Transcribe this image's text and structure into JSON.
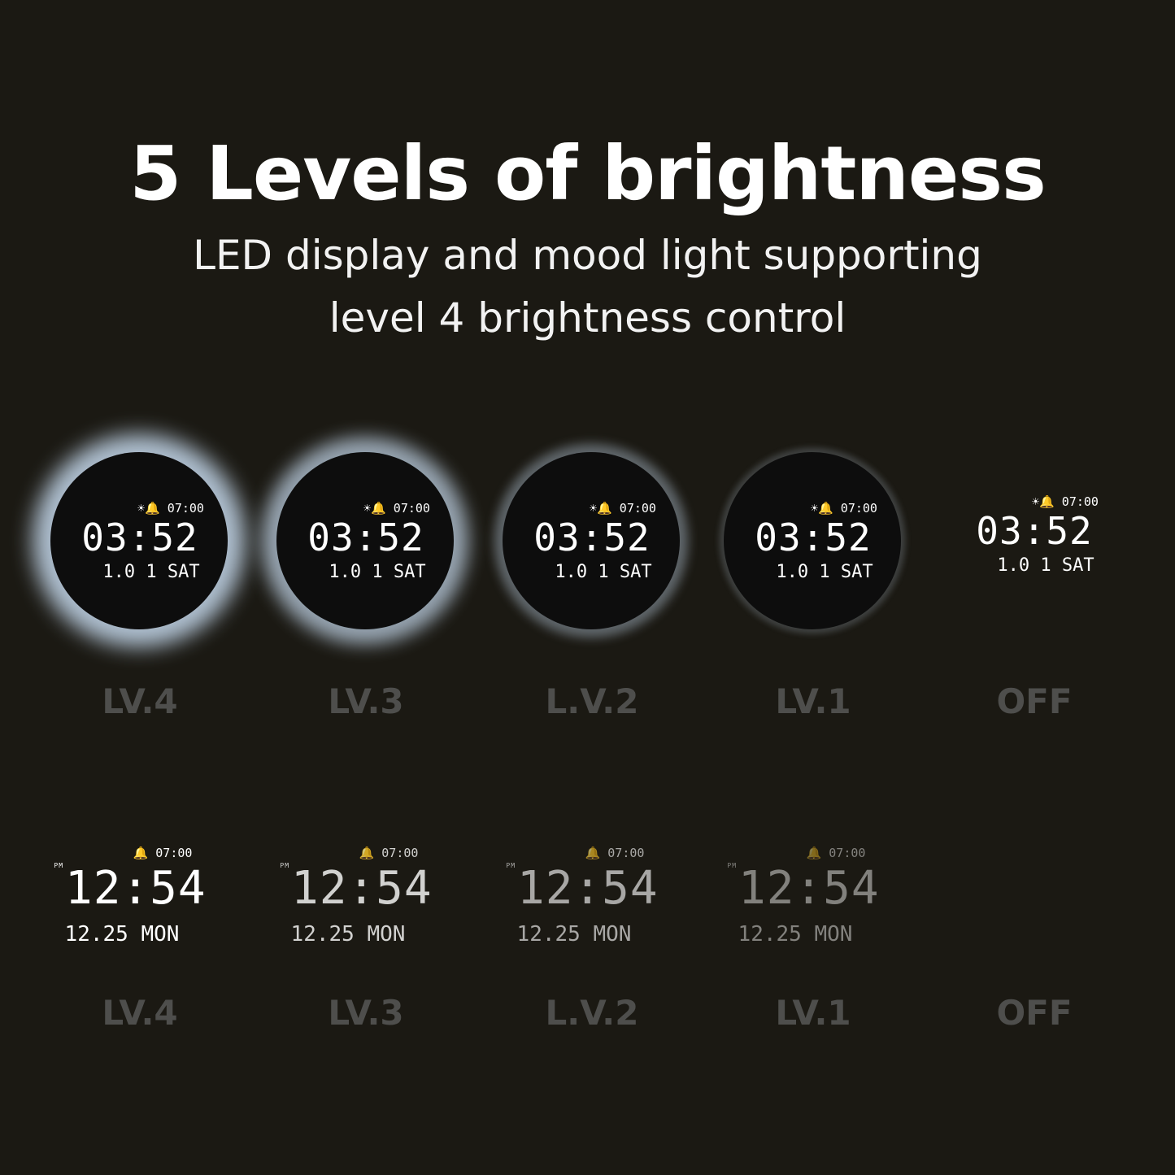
{
  "header": {
    "title": "5 Levels of brightness",
    "subtitle_line1": "LED display and mood light supporting",
    "subtitle_line2": "level 4 brightness control"
  },
  "top_row": {
    "alarm": "☀🔔 07:00",
    "time": "03:52",
    "date": "1.0 1 SAT",
    "items": [
      {
        "label": "LV.4",
        "glow": 1.0
      },
      {
        "label": "LV.3",
        "glow": 0.8
      },
      {
        "label": "L.V.2",
        "glow": 0.35
      },
      {
        "label": "LV.1",
        "glow": 0.08
      },
      {
        "label": "OFF",
        "glow": 0
      }
    ]
  },
  "bottom_row": {
    "alarm": "🔔 07:00",
    "pm": "PM",
    "time": "12:54",
    "date": "12.25 MON",
    "items": [
      {
        "label": "LV.4",
        "brightness": 1.0
      },
      {
        "label": "LV.3",
        "brightness": 0.8
      },
      {
        "label": "L.V.2",
        "brightness": 0.62
      },
      {
        "label": "LV.1",
        "brightness": 0.45
      },
      {
        "label": "OFF",
        "brightness": 0
      }
    ]
  },
  "colors": {
    "background": "#1b1913",
    "label": "#4e4e4c",
    "glow": "#c8dcf0"
  }
}
